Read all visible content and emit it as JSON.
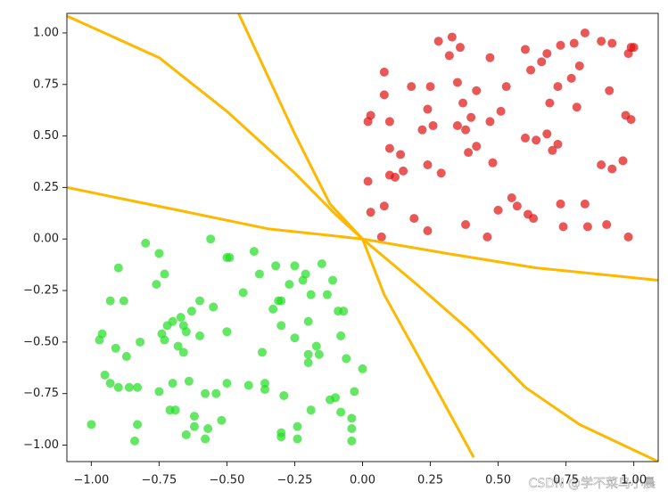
{
  "chart_data": {
    "type": "scatter",
    "xlim": [
      -1.09,
      1.09
    ],
    "ylim": [
      -1.08,
      1.095
    ],
    "xticks": [
      {
        "value": -1,
        "label": "−1.00"
      },
      {
        "value": -0.75,
        "label": "−0.75"
      },
      {
        "value": -0.5,
        "label": "−0.50"
      },
      {
        "value": -0.25,
        "label": "−0.25"
      },
      {
        "value": 0,
        "label": "0.00"
      },
      {
        "value": 0.25,
        "label": "0.25"
      },
      {
        "value": 0.5,
        "label": "0.50"
      },
      {
        "value": 0.75,
        "label": "0.75"
      },
      {
        "value": 1,
        "label": "1.00"
      }
    ],
    "yticks": [
      {
        "value": -1,
        "label": "−1.00"
      },
      {
        "value": -0.75,
        "label": "−0.75"
      },
      {
        "value": -0.5,
        "label": "−0.50"
      },
      {
        "value": -0.25,
        "label": "−0.25"
      },
      {
        "value": 0,
        "label": "0.00"
      },
      {
        "value": 0.25,
        "label": "0.25"
      },
      {
        "value": 0.5,
        "label": "0.50"
      },
      {
        "value": 0.75,
        "label": "0.75"
      },
      {
        "value": 1,
        "label": "1.00"
      }
    ],
    "series": [
      {
        "type": "scatter",
        "color": "#e01010",
        "x": [
          0.28,
          0.32,
          0.33,
          0.36,
          0.47,
          0.6,
          0.66,
          0.68,
          0.73,
          0.78,
          0.82,
          0.88,
          0.92,
          0.98,
          0.99,
          1.0,
          0.08,
          0.08,
          0.18,
          0.25,
          0.35,
          0.42,
          0.53,
          0.62,
          0.72,
          0.77,
          0.8,
          0.91,
          0.02,
          0.03,
          0.1,
          0.24,
          0.37,
          0.4,
          0.47,
          0.51,
          0.69,
          0.79,
          0.97,
          0.99,
          0.1,
          0.14,
          0.22,
          0.26,
          0.35,
          0.38,
          0.42,
          0.6,
          0.68,
          0.64,
          0.72,
          0.88,
          0.92,
          0.96,
          0.24,
          0.29,
          0.39,
          0.48,
          0.7,
          0.1,
          0.12,
          0.15,
          0.02,
          0.03,
          0.08,
          0.19,
          0.24,
          0.38,
          0.46,
          0.5,
          0.55,
          0.57,
          0.61,
          0.63,
          0.73,
          0.74,
          0.82,
          0.9,
          0.98,
          0.07,
          0.83
        ],
        "values": [
          0.96,
          0.89,
          0.98,
          0.93,
          0.88,
          0.92,
          0.86,
          0.9,
          0.94,
          0.95,
          1.0,
          0.96,
          0.95,
          0.9,
          0.93,
          0.93,
          0.81,
          0.7,
          0.74,
          0.74,
          0.76,
          0.72,
          0.74,
          0.82,
          0.74,
          0.78,
          0.84,
          0.72,
          0.57,
          0.6,
          0.57,
          0.63,
          0.66,
          0.59,
          0.57,
          0.62,
          0.66,
          0.64,
          0.6,
          0.58,
          0.44,
          0.41,
          0.53,
          0.55,
          0.55,
          0.53,
          0.45,
          0.49,
          0.51,
          0.48,
          0.46,
          0.36,
          0.34,
          0.38,
          0.36,
          0.32,
          0.42,
          0.37,
          0.43,
          0.31,
          0.3,
          0.33,
          0.28,
          0.13,
          0.16,
          0.1,
          0.04,
          0.07,
          0.01,
          0.14,
          0.2,
          0.16,
          0.12,
          0.1,
          0.17,
          0.06,
          0.17,
          0.07,
          0.01,
          0.01,
          0.06
        ]
      },
      {
        "type": "scatter",
        "color": "#22dd22",
        "x": [
          -0.8,
          -0.56,
          -0.75,
          -0.9,
          -0.76,
          -0.73,
          -0.93,
          -0.88,
          -0.63,
          -0.6,
          -0.5,
          -0.49,
          -0.4,
          -0.38,
          -0.32,
          -0.27,
          -0.25,
          -0.22,
          -0.21,
          -0.15,
          -0.11,
          -0.13,
          -0.19,
          -0.31,
          -0.3,
          -0.33,
          -0.44,
          -0.55,
          -0.67,
          -0.7,
          -0.66,
          -0.72,
          -0.74,
          -0.73,
          -0.65,
          -0.6,
          -0.97,
          -0.96,
          -0.82,
          -0.91,
          -0.87,
          -0.68,
          -0.66,
          -0.5,
          -0.37,
          -0.3,
          -0.25,
          -0.2,
          -0.17,
          -0.2,
          -0.16,
          -0.08,
          -0.09,
          -0.07,
          -0.06,
          -0.95,
          -0.93,
          -0.9,
          -0.86,
          -0.83,
          -0.75,
          -0.7,
          -0.64,
          -0.58,
          -0.54,
          -0.5,
          -0.42,
          -0.36,
          -0.36,
          -0.29,
          -0.2,
          -0.12,
          -0.1,
          0.0,
          -0.03,
          -1.0,
          -0.83,
          -0.71,
          -0.69,
          -0.62,
          -0.62,
          -0.57,
          -0.65,
          -0.58,
          -0.52,
          -0.3,
          -0.3,
          -0.24,
          -0.24,
          -0.19,
          -0.08,
          -0.04,
          -0.04,
          -0.04,
          -0.84
        ],
        "values": [
          -0.02,
          0.0,
          -0.07,
          -0.14,
          -0.22,
          -0.17,
          -0.3,
          -0.3,
          -0.35,
          -0.3,
          -0.09,
          -0.09,
          -0.06,
          -0.17,
          -0.13,
          -0.22,
          -0.13,
          -0.2,
          -0.17,
          -0.12,
          -0.2,
          -0.27,
          -0.27,
          -0.3,
          -0.3,
          -0.34,
          -0.26,
          -0.33,
          -0.38,
          -0.4,
          -0.42,
          -0.42,
          -0.46,
          -0.49,
          -0.45,
          -0.47,
          -0.49,
          -0.46,
          -0.5,
          -0.53,
          -0.57,
          -0.52,
          -0.55,
          -0.45,
          -0.55,
          -0.42,
          -0.48,
          -0.4,
          -0.52,
          -0.56,
          -0.56,
          -0.47,
          -0.35,
          -0.35,
          -0.58,
          -0.66,
          -0.7,
          -0.72,
          -0.72,
          -0.72,
          -0.74,
          -0.7,
          -0.69,
          -0.75,
          -0.75,
          -0.7,
          -0.71,
          -0.7,
          -0.73,
          -0.76,
          -0.6,
          -0.78,
          -0.77,
          -0.63,
          -0.74,
          -0.9,
          -0.9,
          -0.83,
          -0.83,
          -0.86,
          -0.91,
          -0.92,
          -0.95,
          -0.97,
          -0.88,
          -0.94,
          -0.96,
          -0.91,
          -0.97,
          -0.83,
          -0.84,
          -0.87,
          -0.92,
          -0.98,
          -0.98
        ]
      },
      {
        "type": "line",
        "color": "#ffb800",
        "x": [
          -1.12,
          -0.75,
          -0.5,
          -0.25,
          -0.1,
          0.0,
          0.2,
          0.4,
          0.6,
          0.8,
          1.09
        ],
        "values": [
          1.1,
          0.88,
          0.62,
          0.32,
          0.12,
          0.0,
          -0.22,
          -0.45,
          -0.72,
          -0.9,
          -1.08
        ]
      },
      {
        "type": "line",
        "color": "#ffb800",
        "x": [
          -0.48,
          -0.25,
          -0.12,
          0.0,
          0.08,
          0.24,
          0.41
        ],
        "values": [
          1.16,
          0.51,
          0.17,
          0.0,
          -0.27,
          -0.65,
          -1.06
        ]
      },
      {
        "type": "line",
        "color": "#ffb800",
        "x": [
          -1.09,
          -0.68,
          -0.35,
          0.0,
          0.31,
          0.64,
          1.09
        ],
        "values": [
          0.25,
          0.14,
          0.05,
          0.0,
          -0.07,
          -0.14,
          -0.2
        ]
      }
    ],
    "watermark": "CSDN @学不菜鸟小晨"
  }
}
